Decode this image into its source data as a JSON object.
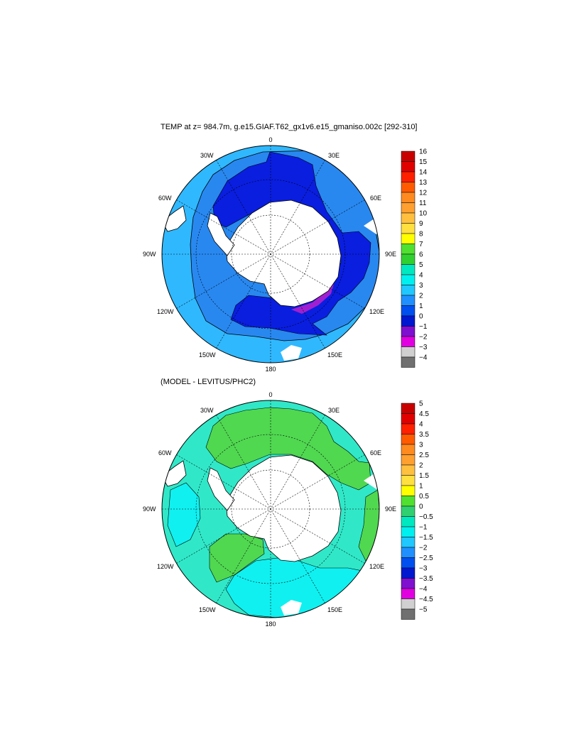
{
  "panel1": {
    "title": "TEMP at z= 984.7m, g.e15.GIAF.T62_gx1v6.e15_gmaniso.002c [292-310]",
    "colorbar": {
      "labels": [
        "16",
        "15",
        "14",
        "13",
        "12",
        "11",
        "10",
        "9",
        "8",
        "7",
        "6",
        "5",
        "4",
        "3",
        "2",
        "1",
        "0",
        "−1",
        "−2",
        "−3",
        "−4"
      ],
      "colors": [
        "#c80000",
        "#e00000",
        "#ff2000",
        "#ff5a00",
        "#ff8a20",
        "#ffa030",
        "#ffc040",
        "#ffe040",
        "#ffff00",
        "#50e030",
        "#30d030",
        "#00e8c0",
        "#00f0f0",
        "#20c8ff",
        "#2090ff",
        "#0050f0",
        "#0018d0",
        "#8010d0",
        "#e000e0",
        "#d0d0d0",
        "#707070"
      ]
    },
    "fill": {
      "outer_ring": "#30b8ff",
      "band_2_3": "#2888f0",
      "band_0_1": "#0a1ee0",
      "band_neg1": "#a020d0",
      "land": "#ffffff"
    }
  },
  "panel2": {
    "title": "(MODEL - LEVITUS/PHC2)",
    "colorbar": {
      "labels": [
        "5",
        "4.5",
        "4",
        "3.5",
        "3",
        "2.5",
        "2",
        "1.5",
        "1",
        "0.5",
        "0",
        "−0.5",
        "−1",
        "−1.5",
        "−2",
        "−2.5",
        "−3",
        "−3.5",
        "−4",
        "−4.5",
        "−5"
      ],
      "colors": [
        "#c80000",
        "#e00000",
        "#ff2000",
        "#ff5a00",
        "#ff8a20",
        "#ffa030",
        "#ffc040",
        "#ffe040",
        "#ffff00",
        "#50e030",
        "#30d070",
        "#00e8c0",
        "#00f0f0",
        "#20c8ff",
        "#2090ff",
        "#0050f0",
        "#0018d0",
        "#8010d0",
        "#e000e0",
        "#d0d0d0",
        "#707070"
      ]
    },
    "fill": {
      "background": "#30e8c8",
      "green": "#50d850",
      "cyan": "#10f0f0",
      "land": "#ffffff"
    }
  },
  "map_labels": {
    "lon_0": "0",
    "lon_30e": "30E",
    "lon_60e": "60E",
    "lon_90e": "90E",
    "lon_120e": "120E",
    "lon_150e": "150E",
    "lon_180": "180",
    "lon_150w": "150W",
    "lon_120w": "120W",
    "lon_90w": "90W",
    "lon_60w": "60W",
    "lon_30w": "30W"
  }
}
